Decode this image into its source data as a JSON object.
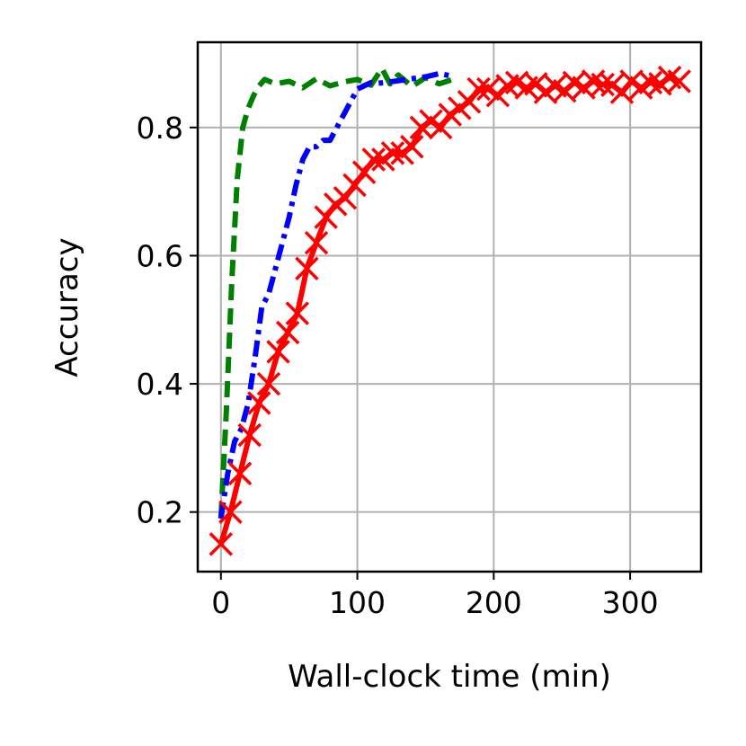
{
  "chart_data": {
    "type": "line",
    "xlabel": "Wall-clock time (min)",
    "ylabel": "Accuracy",
    "xlim": [
      -17,
      352
    ],
    "ylim": [
      0.107,
      0.933
    ],
    "xticks": [
      0,
      100,
      200,
      300
    ],
    "yticks": [
      0.2,
      0.4,
      0.6,
      0.8
    ],
    "xtick_labels": [
      "0",
      "100",
      "200",
      "300"
    ],
    "ytick_labels": [
      "0.2",
      "0.4",
      "0.6",
      "0.8"
    ],
    "grid": true,
    "legend": "none",
    "series": [
      {
        "color": "#008000",
        "line_style": "dashed",
        "marker": "none",
        "x": [
          0,
          4,
          8,
          12,
          16,
          20,
          24,
          28,
          32,
          40,
          50,
          60,
          70,
          80,
          90,
          100,
          110,
          118,
          124,
          130,
          140,
          150,
          160,
          170
        ],
        "y": [
          0.19,
          0.36,
          0.56,
          0.72,
          0.8,
          0.83,
          0.85,
          0.865,
          0.875,
          0.868,
          0.872,
          0.862,
          0.876,
          0.865,
          0.871,
          0.875,
          0.866,
          0.892,
          0.868,
          0.882,
          0.864,
          0.878,
          0.868,
          0.875
        ]
      },
      {
        "color": "#0000ff",
        "line_style": "dashdot",
        "marker": "none",
        "x": [
          0,
          5,
          10,
          15,
          20,
          25,
          30,
          35,
          40,
          45,
          50,
          55,
          60,
          65,
          70,
          75,
          80,
          85,
          90,
          95,
          100,
          105,
          110,
          115,
          120,
          130,
          140,
          150,
          160,
          170
        ],
        "y": [
          0.19,
          0.26,
          0.31,
          0.33,
          0.37,
          0.44,
          0.52,
          0.54,
          0.58,
          0.62,
          0.66,
          0.71,
          0.75,
          0.77,
          0.77,
          0.78,
          0.78,
          0.8,
          0.82,
          0.84,
          0.86,
          0.865,
          0.87,
          0.869,
          0.87,
          0.873,
          0.876,
          0.879,
          0.884,
          0.88
        ]
      },
      {
        "color": "#ff0000",
        "line_style": "solid",
        "marker": "x",
        "x": [
          0,
          7,
          14,
          21,
          28,
          35,
          42,
          49,
          56,
          63,
          70,
          77,
          84,
          91,
          98,
          105,
          112,
          119,
          126,
          133,
          140,
          147,
          154,
          161,
          168,
          175,
          182,
          189,
          196,
          203,
          210,
          217,
          224,
          231,
          238,
          245,
          252,
          259,
          266,
          273,
          280,
          287,
          294,
          301,
          308,
          315,
          322,
          329,
          336
        ],
        "y": [
          0.15,
          0.2,
          0.26,
          0.32,
          0.37,
          0.4,
          0.45,
          0.48,
          0.51,
          0.58,
          0.62,
          0.66,
          0.68,
          0.69,
          0.71,
          0.73,
          0.75,
          0.75,
          0.76,
          0.76,
          0.77,
          0.8,
          0.81,
          0.8,
          0.82,
          0.83,
          0.84,
          0.86,
          0.86,
          0.85,
          0.865,
          0.87,
          0.862,
          0.868,
          0.855,
          0.865,
          0.857,
          0.87,
          0.862,
          0.872,
          0.867,
          0.866,
          0.855,
          0.872,
          0.862,
          0.87,
          0.868,
          0.878,
          0.872
        ]
      }
    ]
  }
}
